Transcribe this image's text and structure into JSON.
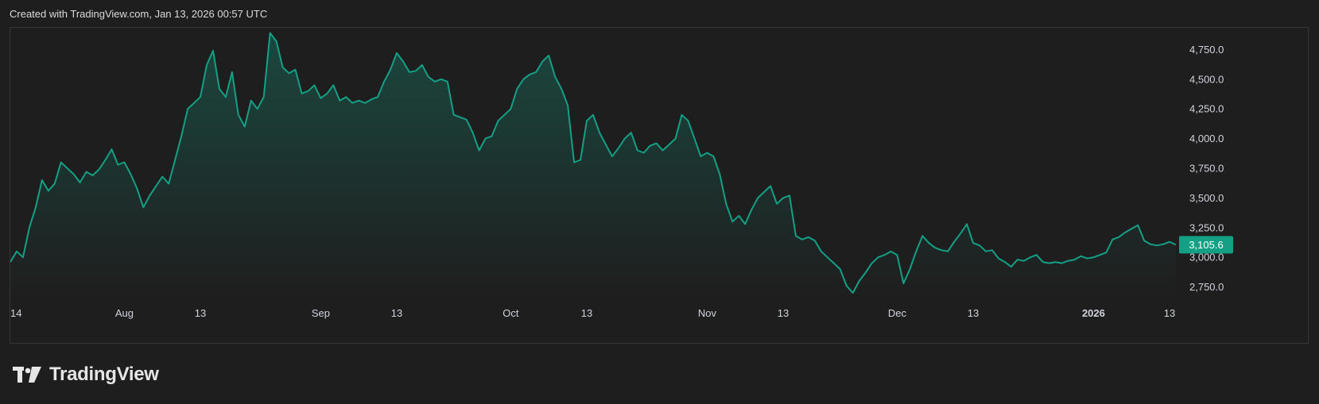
{
  "header": {
    "caption": "Created with TradingView.com, Jan 13, 2026 00:57 UTC"
  },
  "brand": {
    "name": "TradingView",
    "icon": "tradingview-logo-icon"
  },
  "colors": {
    "background": "#1e1e1e",
    "line": "#14a085",
    "price_badge": "#14a085",
    "grid_border": "#363636",
    "text": "#d1d4dc"
  },
  "chart_data": {
    "type": "area",
    "title": "",
    "xlabel": "",
    "ylabel": "",
    "ylim": [
      2660,
      4920
    ],
    "grid": false,
    "current_price": "3,105.6",
    "y_ticks": [
      {
        "value": 4750,
        "label": "4,750.0"
      },
      {
        "value": 4500,
        "label": "4,500.0"
      },
      {
        "value": 4250,
        "label": "4,250.0"
      },
      {
        "value": 4000,
        "label": "4,000.0"
      },
      {
        "value": 3750,
        "label": "3,750.0"
      },
      {
        "value": 3500,
        "label": "3,500.0"
      },
      {
        "value": 3250,
        "label": "3,250.0"
      },
      {
        "value": 3000,
        "label": "3,000.0"
      },
      {
        "value": 2750,
        "label": "2,750.0"
      }
    ],
    "x_ticks": [
      {
        "day": 0,
        "label": "14",
        "bold": false
      },
      {
        "day": 18,
        "label": "Aug",
        "bold": false
      },
      {
        "day": 30,
        "label": "13",
        "bold": false
      },
      {
        "day": 49,
        "label": "Sep",
        "bold": false
      },
      {
        "day": 61,
        "label": "13",
        "bold": false
      },
      {
        "day": 79,
        "label": "Oct",
        "bold": false
      },
      {
        "day": 91,
        "label": "13",
        "bold": false
      },
      {
        "day": 110,
        "label": "Nov",
        "bold": false
      },
      {
        "day": 122,
        "label": "13",
        "bold": false
      },
      {
        "day": 140,
        "label": "Dec",
        "bold": false
      },
      {
        "day": 152,
        "label": "13",
        "bold": false
      },
      {
        "day": 171,
        "label": "2026",
        "bold": true
      },
      {
        "day": 183,
        "label": "13",
        "bold": false
      }
    ],
    "series": [
      {
        "points": [
          [
            0,
            2960
          ],
          [
            1,
            3050
          ],
          [
            2,
            3000
          ],
          [
            3,
            3250
          ],
          [
            4,
            3420
          ],
          [
            5,
            3650
          ],
          [
            6,
            3560
          ],
          [
            7,
            3620
          ],
          [
            8,
            3800
          ],
          [
            9,
            3750
          ],
          [
            10,
            3700
          ],
          [
            11,
            3630
          ],
          [
            12,
            3720
          ],
          [
            13,
            3690
          ],
          [
            14,
            3740
          ],
          [
            15,
            3820
          ],
          [
            16,
            3910
          ],
          [
            17,
            3780
          ],
          [
            18,
            3800
          ],
          [
            19,
            3700
          ],
          [
            20,
            3580
          ],
          [
            21,
            3420
          ],
          [
            22,
            3520
          ],
          [
            23,
            3600
          ],
          [
            24,
            3680
          ],
          [
            25,
            3620
          ],
          [
            26,
            3820
          ],
          [
            27,
            4020
          ],
          [
            28,
            4250
          ],
          [
            29,
            4300
          ],
          [
            30,
            4350
          ],
          [
            31,
            4620
          ],
          [
            32,
            4740
          ],
          [
            33,
            4420
          ],
          [
            34,
            4350
          ],
          [
            35,
            4560
          ],
          [
            36,
            4200
          ],
          [
            37,
            4100
          ],
          [
            38,
            4320
          ],
          [
            39,
            4250
          ],
          [
            40,
            4350
          ],
          [
            41,
            4890
          ],
          [
            42,
            4820
          ],
          [
            43,
            4600
          ],
          [
            44,
            4550
          ],
          [
            45,
            4580
          ],
          [
            46,
            4380
          ],
          [
            47,
            4400
          ],
          [
            48,
            4450
          ],
          [
            49,
            4340
          ],
          [
            50,
            4380
          ],
          [
            51,
            4450
          ],
          [
            52,
            4320
          ],
          [
            53,
            4350
          ],
          [
            54,
            4300
          ],
          [
            55,
            4320
          ],
          [
            56,
            4300
          ],
          [
            57,
            4330
          ],
          [
            58,
            4350
          ],
          [
            59,
            4480
          ],
          [
            60,
            4580
          ],
          [
            61,
            4720
          ],
          [
            62,
            4650
          ],
          [
            63,
            4560
          ],
          [
            64,
            4570
          ],
          [
            65,
            4620
          ],
          [
            66,
            4520
          ],
          [
            67,
            4480
          ],
          [
            68,
            4500
          ],
          [
            69,
            4480
          ],
          [
            70,
            4200
          ],
          [
            71,
            4180
          ],
          [
            72,
            4160
          ],
          [
            73,
            4050
          ],
          [
            74,
            3900
          ],
          [
            75,
            4000
          ],
          [
            76,
            4020
          ],
          [
            77,
            4150
          ],
          [
            78,
            4200
          ],
          [
            79,
            4250
          ],
          [
            80,
            4420
          ],
          [
            81,
            4500
          ],
          [
            82,
            4540
          ],
          [
            83,
            4560
          ],
          [
            84,
            4650
          ],
          [
            85,
            4700
          ],
          [
            86,
            4520
          ],
          [
            87,
            4420
          ],
          [
            88,
            4280
          ],
          [
            89,
            3800
          ],
          [
            90,
            3820
          ],
          [
            91,
            4150
          ],
          [
            92,
            4200
          ],
          [
            93,
            4050
          ],
          [
            94,
            3950
          ],
          [
            95,
            3850
          ],
          [
            96,
            3920
          ],
          [
            97,
            4000
          ],
          [
            98,
            4050
          ],
          [
            99,
            3900
          ],
          [
            100,
            3880
          ],
          [
            101,
            3940
          ],
          [
            102,
            3960
          ],
          [
            103,
            3900
          ],
          [
            104,
            3950
          ],
          [
            105,
            4000
          ],
          [
            106,
            4200
          ],
          [
            107,
            4150
          ],
          [
            108,
            4000
          ],
          [
            109,
            3850
          ],
          [
            110,
            3880
          ],
          [
            111,
            3850
          ],
          [
            112,
            3700
          ],
          [
            113,
            3450
          ],
          [
            114,
            3300
          ],
          [
            115,
            3350
          ],
          [
            116,
            3280
          ],
          [
            117,
            3400
          ],
          [
            118,
            3500
          ],
          [
            119,
            3550
          ],
          [
            120,
            3600
          ],
          [
            121,
            3450
          ],
          [
            122,
            3500
          ],
          [
            123,
            3520
          ],
          [
            124,
            3180
          ],
          [
            125,
            3150
          ],
          [
            126,
            3170
          ],
          [
            127,
            3140
          ],
          [
            128,
            3050
          ],
          [
            129,
            3000
          ],
          [
            130,
            2950
          ],
          [
            131,
            2900
          ],
          [
            132,
            2760
          ],
          [
            133,
            2700
          ],
          [
            134,
            2800
          ],
          [
            135,
            2870
          ],
          [
            136,
            2950
          ],
          [
            137,
            3000
          ],
          [
            138,
            3020
          ],
          [
            139,
            3050
          ],
          [
            140,
            3020
          ],
          [
            141,
            2780
          ],
          [
            142,
            2900
          ],
          [
            143,
            3050
          ],
          [
            144,
            3180
          ],
          [
            145,
            3120
          ],
          [
            146,
            3080
          ],
          [
            147,
            3060
          ],
          [
            148,
            3050
          ],
          [
            149,
            3130
          ],
          [
            150,
            3200
          ],
          [
            151,
            3280
          ],
          [
            152,
            3120
          ],
          [
            153,
            3100
          ],
          [
            154,
            3050
          ],
          [
            155,
            3060
          ],
          [
            156,
            2990
          ],
          [
            157,
            2960
          ],
          [
            158,
            2920
          ],
          [
            159,
            2980
          ],
          [
            160,
            2970
          ],
          [
            161,
            3000
          ],
          [
            162,
            3020
          ],
          [
            163,
            2960
          ],
          [
            164,
            2950
          ],
          [
            165,
            2960
          ],
          [
            166,
            2950
          ],
          [
            167,
            2970
          ],
          [
            168,
            2980
          ],
          [
            169,
            3010
          ],
          [
            170,
            2990
          ],
          [
            171,
            3000
          ],
          [
            172,
            3020
          ],
          [
            173,
            3040
          ],
          [
            174,
            3150
          ],
          [
            175,
            3170
          ],
          [
            176,
            3210
          ],
          [
            177,
            3240
          ],
          [
            178,
            3270
          ],
          [
            179,
            3140
          ],
          [
            180,
            3110
          ],
          [
            181,
            3100
          ],
          [
            182,
            3110
          ],
          [
            183,
            3130
          ],
          [
            184,
            3105.6
          ]
        ]
      }
    ]
  }
}
